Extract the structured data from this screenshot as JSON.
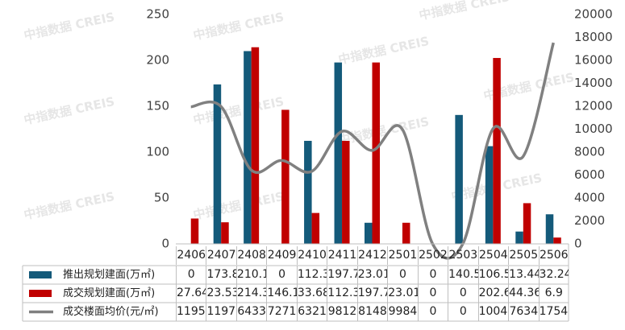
{
  "chart_data": {
    "type": "bar-line",
    "watermark": "中指数据 CREIS",
    "categories": [
      "2406",
      "2407",
      "2408",
      "2409",
      "2410",
      "2411",
      "2412",
      "2501",
      "2502",
      "2503",
      "2504",
      "2505",
      "2506"
    ],
    "series": [
      {
        "name": "推出规划建面(万㎡)",
        "color": "#145a7a",
        "type": "bar",
        "axis": "y",
        "values": [
          0,
          173.8,
          210.1,
          0,
          112.3,
          197.7,
          23.01,
          0,
          0,
          140.5,
          106.5,
          13.44,
          32.24
        ]
      },
      {
        "name": "成交规划建面(万㎡)",
        "color": "#c00000",
        "type": "bar",
        "axis": "y",
        "values": [
          27.64,
          23.53,
          214.3,
          146.1,
          33.68,
          112.3,
          197.7,
          23.01,
          0,
          0,
          202.6,
          44.36,
          6.9
        ]
      },
      {
        "name": "成交楼面均价(元/㎡)",
        "color": "#808080",
        "type": "line",
        "axis": "y2",
        "values": [
          11950,
          11970,
          6433,
          7271,
          6321,
          9812,
          8148,
          9984,
          0,
          0,
          10040,
          7634,
          17540
        ]
      }
    ],
    "ylim": [
      0,
      250
    ],
    "yticks": [
      0,
      50,
      100,
      150,
      200,
      250
    ],
    "y2lim": [
      0,
      20000
    ],
    "y2ticks": [
      0,
      2000,
      4000,
      6000,
      8000,
      10000,
      12000,
      14000,
      16000,
      18000,
      20000
    ]
  }
}
